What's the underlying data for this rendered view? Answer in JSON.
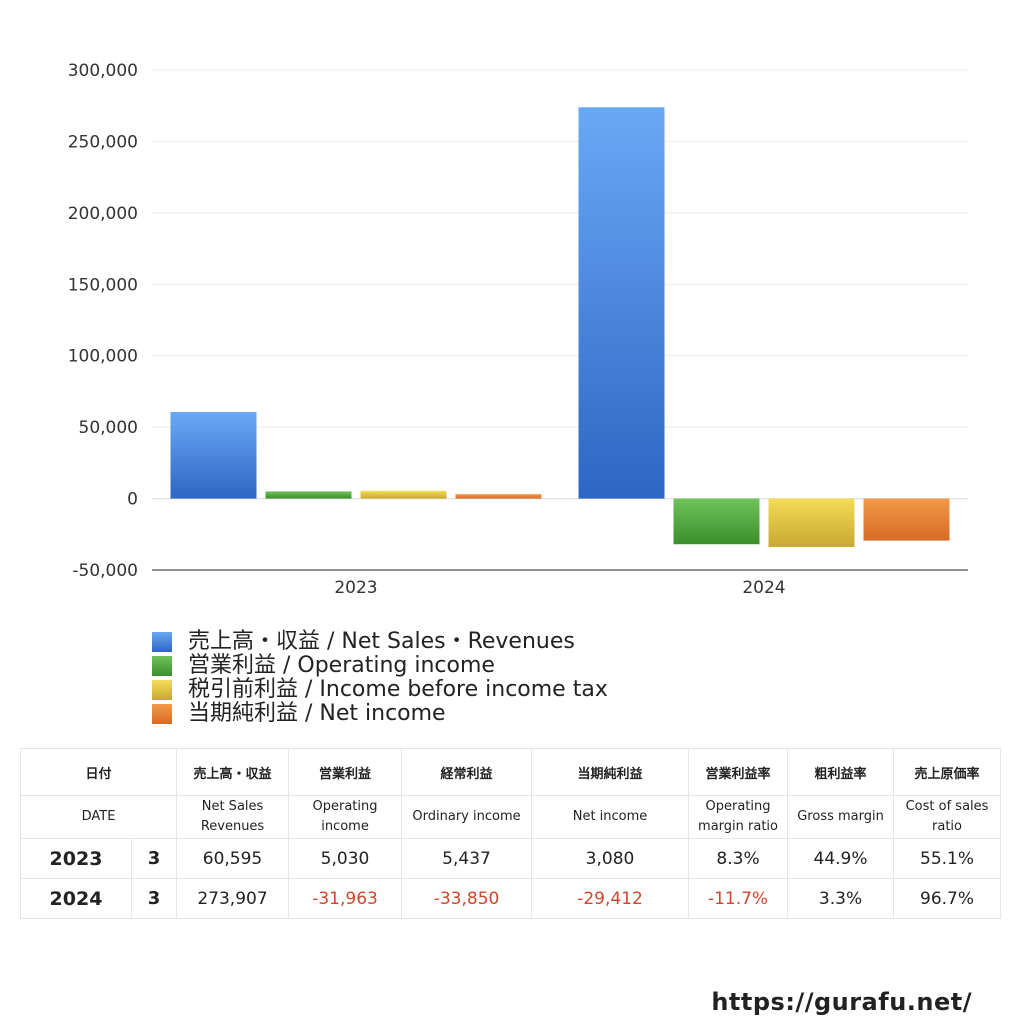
{
  "chart_data": {
    "type": "bar",
    "categories": [
      "2023",
      "2024"
    ],
    "series": [
      {
        "name": "売上高・収益 / Net Sales・Revenues",
        "values": [
          60595,
          273907
        ],
        "color": "#3a7fe0"
      },
      {
        "name": "営業利益 / Operating income",
        "values": [
          5030,
          -31963
        ],
        "color": "#4ea53c"
      },
      {
        "name": "税引前利益 / Income before income tax",
        "values": [
          5437,
          -33850
        ],
        "color": "#e2c43a"
      },
      {
        "name": "当期純利益 / Net income",
        "values": [
          3080,
          -29412
        ],
        "color": "#e0782e"
      }
    ],
    "y_ticks": [
      "300,000",
      "250,000",
      "200,000",
      "150,000",
      "100,000",
      "50,000",
      "0",
      "-50,000"
    ],
    "y_tick_values": [
      300000,
      250000,
      200000,
      150000,
      100000,
      50000,
      0,
      -50000
    ],
    "ylim": [
      -50000,
      300000
    ],
    "grid": true,
    "legend_position": "bottom-left"
  },
  "table": {
    "header_ja": [
      "日付",
      "",
      "売上高・収益",
      "営業利益",
      "経常利益",
      "当期純利益",
      "営業利益率",
      "粗利益率",
      "売上原価率"
    ],
    "header_en": [
      "DATE",
      "",
      "Net Sales\nRevenues",
      "Operating\nincome",
      "Ordinary income",
      "Net income",
      "Operating\nmargin ratio",
      "Gross margin",
      "Cost of sales\nratio"
    ],
    "rows": [
      {
        "year": "2023",
        "month": "3",
        "sales": "60,595",
        "op": "5,030",
        "ord": "5,437",
        "net": "3,080",
        "opm": "8.3%",
        "gm": "44.9%",
        "cos": "55.1%"
      },
      {
        "year": "2024",
        "month": "3",
        "sales": "273,907",
        "op": "-31,963",
        "ord": "-33,850",
        "net": "-29,412",
        "opm": "-11.7%",
        "gm": "3.3%",
        "cos": "96.7%"
      }
    ]
  },
  "site_url": "https://gurafu.net/"
}
